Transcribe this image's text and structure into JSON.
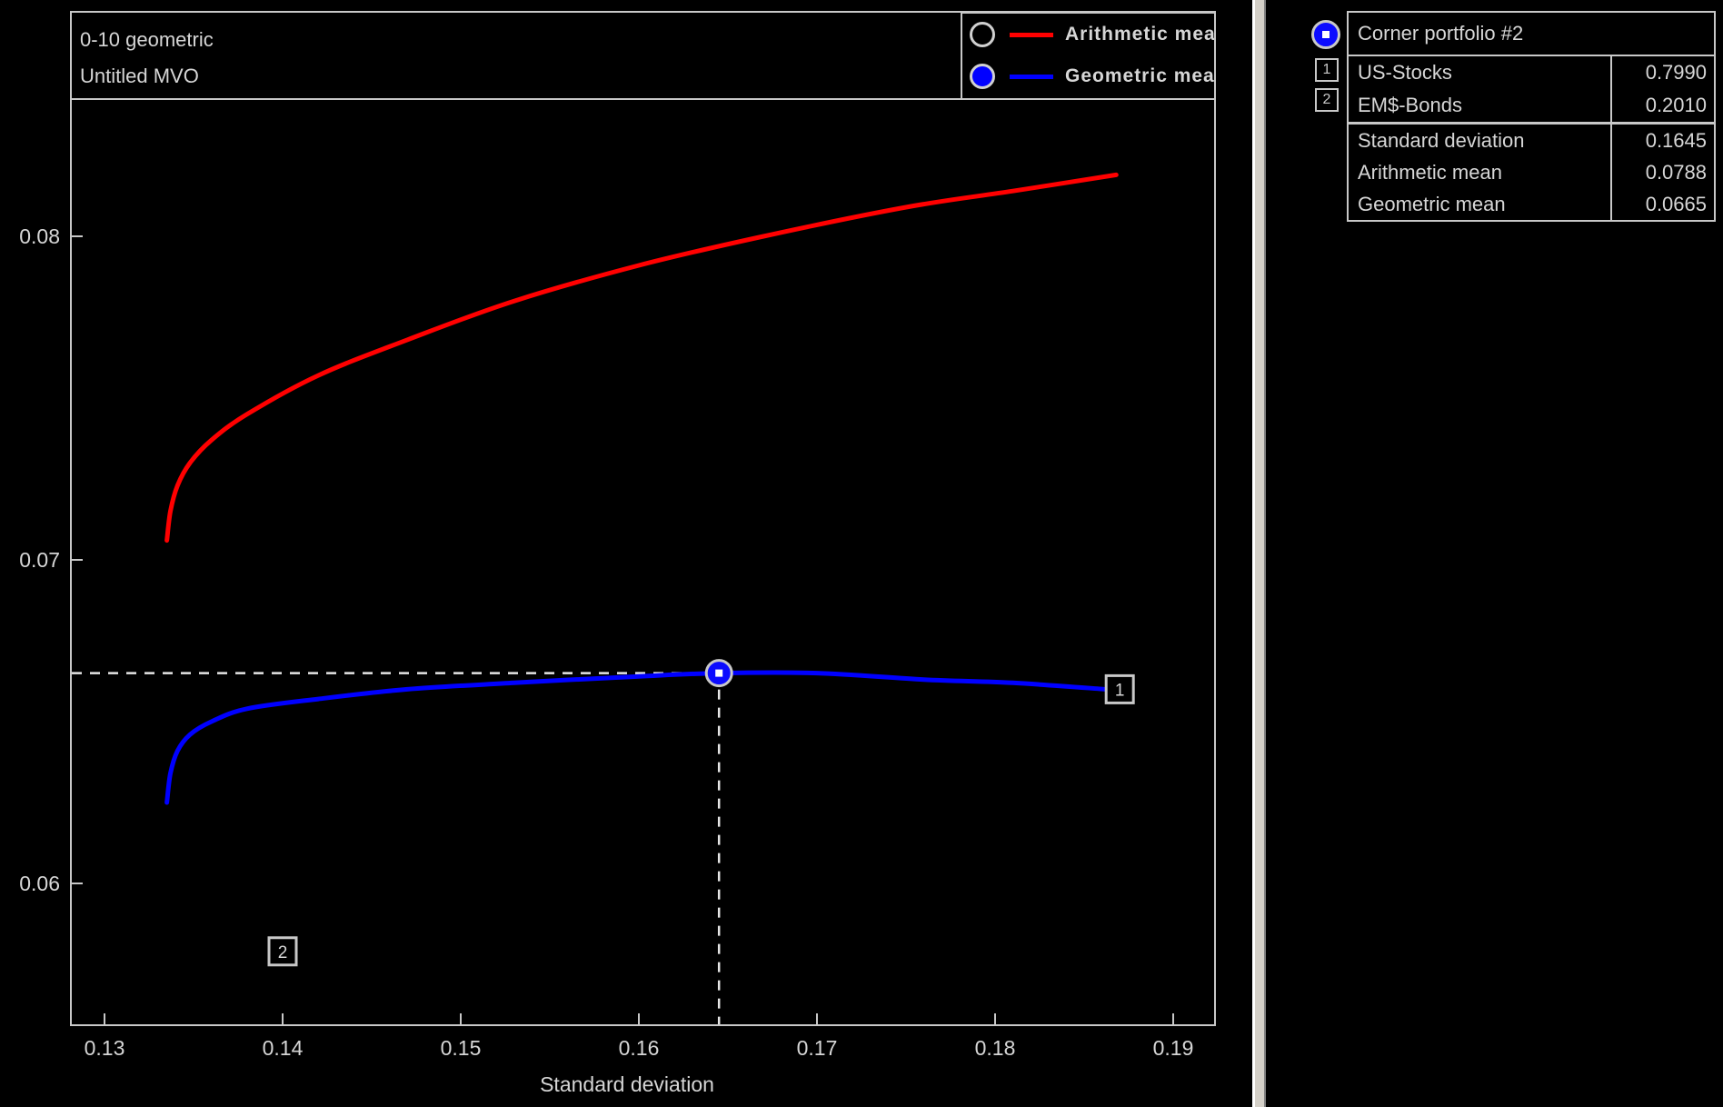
{
  "app": {
    "background": "#000000",
    "text_color": "#d6d6d6",
    "border_color": "#c8c8c8",
    "splitter_colors": {
      "highlight": "#ffffff",
      "body": "#d4d0c8",
      "shadow": "#808080"
    }
  },
  "chart_data": {
    "type": "line",
    "title": "0-10 geometric",
    "subtitle": "Untitled MVO",
    "xlabel": "Standard deviation",
    "ylabel": "",
    "xlim": [
      0.1281,
      0.1922
    ],
    "ylim": [
      0.0556,
      0.0842
    ],
    "x_ticks": [
      "0.13",
      "0.14",
      "0.15",
      "0.16",
      "0.17",
      "0.18",
      "0.19"
    ],
    "y_ticks": [
      "0.06",
      "0.07",
      "0.08"
    ],
    "grid": false,
    "legend_position": "top-right",
    "legend": [
      {
        "label": "Arithmetic mea",
        "color": "#ff0000",
        "marker": "open-circle"
      },
      {
        "label": "Geometric mea",
        "color": "#0000ff",
        "marker": "filled-circle"
      }
    ],
    "series": [
      {
        "name": "Arithmetic mean",
        "color": "#ff0000",
        "points": [
          [
            0.1335,
            0.0706
          ],
          [
            0.1337,
            0.0715
          ],
          [
            0.1341,
            0.0723
          ],
          [
            0.1348,
            0.073
          ],
          [
            0.136,
            0.0737
          ],
          [
            0.138,
            0.0745
          ],
          [
            0.142,
            0.0757
          ],
          [
            0.147,
            0.0768
          ],
          [
            0.153,
            0.078
          ],
          [
            0.16,
            0.0791
          ],
          [
            0.167,
            0.08
          ],
          [
            0.175,
            0.0809
          ],
          [
            0.181,
            0.0814
          ],
          [
            0.1868,
            0.0819
          ]
        ]
      },
      {
        "name": "Geometric mean",
        "color": "#0000ff",
        "points": [
          [
            0.1335,
            0.0625
          ],
          [
            0.1337,
            0.0634
          ],
          [
            0.1341,
            0.0641
          ],
          [
            0.1348,
            0.0646
          ],
          [
            0.136,
            0.065
          ],
          [
            0.138,
            0.0654
          ],
          [
            0.142,
            0.0657
          ],
          [
            0.147,
            0.066
          ],
          [
            0.153,
            0.0662
          ],
          [
            0.16,
            0.0664
          ],
          [
            0.1645,
            0.0665
          ],
          [
            0.17,
            0.0665
          ],
          [
            0.176,
            0.0663
          ],
          [
            0.181,
            0.0662
          ],
          [
            0.1862,
            0.066
          ]
        ]
      }
    ],
    "asset_markers": [
      {
        "label": "1",
        "x": 0.187,
        "y": 0.066
      },
      {
        "label": "2",
        "x": 0.14,
        "y": 0.0579
      }
    ],
    "selected_point": {
      "x": 0.1645,
      "y": 0.0665,
      "crosshair_dashed": true,
      "fill": "#0b0bff",
      "ring": "#c8c8c8",
      "center_dot": "#ffffff"
    }
  },
  "panel": {
    "header": {
      "label": "Corner portfolio #2"
    },
    "weights": [
      {
        "icon": "1",
        "label": "US-Stocks",
        "value": "0.7990"
      },
      {
        "icon": "2",
        "label": "EM$-Bonds",
        "value": "0.2010"
      }
    ],
    "stats": [
      {
        "label": "Standard deviation",
        "value": "0.1645"
      },
      {
        "label": "Arithmetic mean",
        "value": "0.0788"
      },
      {
        "label": "Geometric mean",
        "value": "0.0665"
      }
    ]
  }
}
